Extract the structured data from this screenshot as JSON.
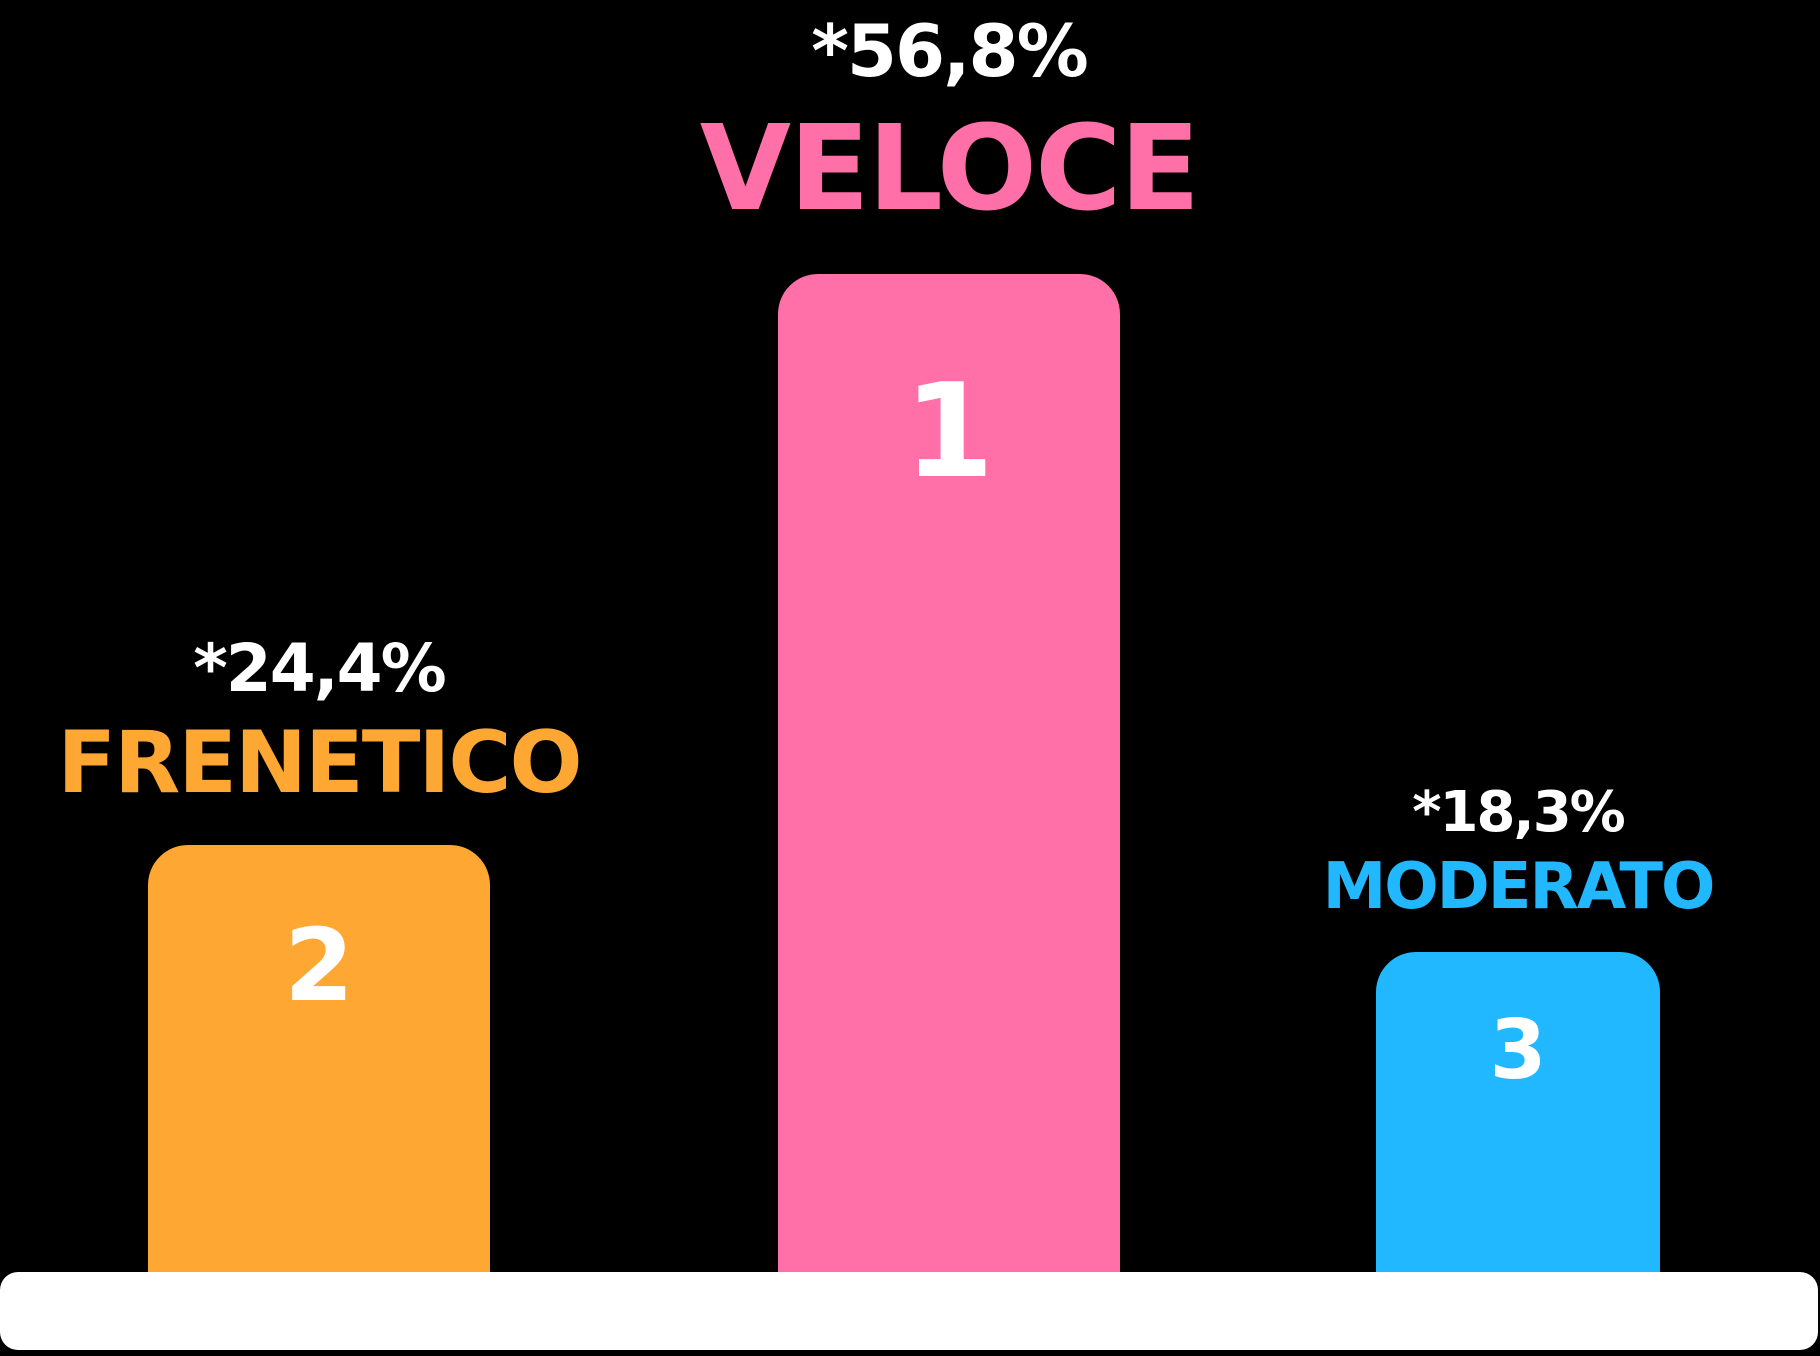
{
  "chart_data": {
    "type": "bar",
    "title": "",
    "xlabel": "",
    "ylabel": "",
    "ylim": [
      0,
      56.8
    ],
    "grid": false,
    "legend": "none",
    "categories": [
      "FRENETICO",
      "VELOCE",
      "MODERATO"
    ],
    "values": [
      24.4,
      56.8,
      18.3
    ],
    "value_labels": [
      "*24,4%",
      "*56,8%",
      "*18,3%"
    ],
    "ranks": [
      "2",
      "1",
      "3"
    ],
    "colors": [
      "#FFA733",
      "#FF6FA8",
      "#22B8FF"
    ],
    "baseline_color": "#FFFFFF",
    "background": "#000000"
  }
}
